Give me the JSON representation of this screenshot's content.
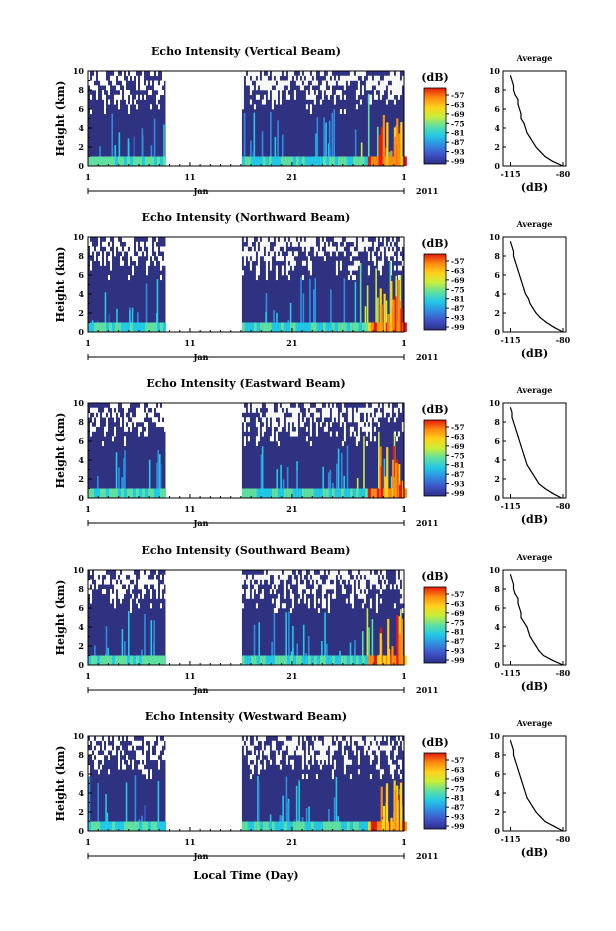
{
  "figure": {
    "xlabel": "Local Time (Day)"
  },
  "colorbar": {
    "unit": "(dB)",
    "ticks": [
      "-57",
      "-63",
      "-69",
      "-75",
      "-81",
      "-87",
      "-93",
      "-99"
    ],
    "colormap": [
      "#2b2f86",
      "#3f52c8",
      "#2f8de0",
      "#22c9e6",
      "#5fe0a0",
      "#c9ee3a",
      "#ffd21a",
      "#ff8a10",
      "#e21a0c"
    ]
  },
  "colors": {
    "no_data": "#ffffff",
    "background_echo": "#2e3280"
  },
  "chart_data": [
    {
      "type": "heatmap",
      "title": "Echo Intensity (Vertical Beam)",
      "ylabel": "Height (km)",
      "ylim": [
        0,
        10
      ],
      "yticks": [
        "0",
        "2",
        "4",
        "6",
        "8",
        "10"
      ],
      "xticks": [
        "1",
        "11",
        "21",
        "1"
      ],
      "xlim": [
        1,
        32
      ],
      "month_label": "Jan",
      "year_label": "2011",
      "data_gap_days": [
        8.6,
        16.1
      ],
      "color_range_db": [
        -99,
        -57
      ],
      "profile": {
        "title": "Average",
        "xlabel": "(dB)",
        "xticks": [
          "-115",
          "-80"
        ],
        "xlim": [
          -120,
          -78
        ],
        "yticks": [
          "0",
          "2",
          "4",
          "6",
          "8",
          "10"
        ],
        "ylim": [
          0,
          10
        ],
        "height_km": [
          0,
          0.5,
          1,
          1.5,
          2,
          2.5,
          3,
          3.5,
          4,
          4.5,
          5,
          5.5,
          6,
          6.5,
          7,
          7.5,
          8,
          8.5,
          9,
          9.5
        ],
        "value_db": [
          -80,
          -87,
          -92,
          -95,
          -98,
          -100,
          -102,
          -104,
          -105,
          -106,
          -108,
          -108,
          -109,
          -110,
          -110,
          -112,
          -113,
          -113,
          -114,
          -115
        ]
      }
    },
    {
      "type": "heatmap",
      "title": "Echo Intensity (Northward Beam)",
      "ylabel": "Height (km)",
      "ylim": [
        0,
        10
      ],
      "yticks": [
        "0",
        "2",
        "4",
        "6",
        "8",
        "10"
      ],
      "xticks": [
        "1",
        "11",
        "21",
        "1"
      ],
      "xlim": [
        1,
        32
      ],
      "month_label": "Jan",
      "year_label": "2011",
      "data_gap_days": [
        8.6,
        16.1
      ],
      "color_range_db": [
        -99,
        -57
      ],
      "profile": {
        "title": "Average",
        "xlabel": "(dB)",
        "xticks": [
          "-115",
          "-80"
        ],
        "xlim": [
          -120,
          -78
        ],
        "yticks": [
          "0",
          "2",
          "4",
          "6",
          "8",
          "10"
        ],
        "ylim": [
          0,
          10
        ],
        "height_km": [
          0,
          0.5,
          1,
          1.5,
          2,
          2.5,
          3,
          3.5,
          4,
          4.5,
          5,
          5.5,
          6,
          6.5,
          7,
          7.5,
          8,
          8.5,
          9,
          9.5
        ],
        "value_db": [
          -80,
          -86,
          -91,
          -95,
          -98,
          -100,
          -102,
          -103,
          -105,
          -106,
          -107,
          -108,
          -109,
          -110,
          -111,
          -112,
          -113,
          -113,
          -114,
          -115
        ]
      }
    },
    {
      "type": "heatmap",
      "title": "Echo Intensity (Eastward Beam)",
      "ylabel": "Height (km)",
      "ylim": [
        0,
        10
      ],
      "yticks": [
        "0",
        "2",
        "4",
        "6",
        "8",
        "10"
      ],
      "xticks": [
        "1",
        "11",
        "21",
        "1"
      ],
      "xlim": [
        1,
        32
      ],
      "month_label": "Jan",
      "year_label": "2011",
      "data_gap_days": [
        8.6,
        16.1
      ],
      "color_range_db": [
        -99,
        -57
      ],
      "profile": {
        "title": "Average",
        "xlabel": "(dB)",
        "xticks": [
          "-115",
          "-80"
        ],
        "xlim": [
          -120,
          -78
        ],
        "yticks": [
          "0",
          "2",
          "4",
          "6",
          "8",
          "10"
        ],
        "ylim": [
          0,
          10
        ],
        "height_km": [
          0,
          0.5,
          1,
          1.5,
          2,
          2.5,
          3,
          3.5,
          4,
          4.5,
          5,
          5.5,
          6,
          6.5,
          7,
          7.5,
          8,
          8.5,
          9,
          9.5
        ],
        "value_db": [
          -81,
          -87,
          -92,
          -96,
          -98,
          -100,
          -102,
          -104,
          -105,
          -106,
          -107,
          -108,
          -109,
          -110,
          -111,
          -112,
          -113,
          -114,
          -114,
          -115
        ]
      }
    },
    {
      "type": "heatmap",
      "title": "Echo Intensity (Southward Beam)",
      "ylabel": "Height (km)",
      "ylim": [
        0,
        10
      ],
      "yticks": [
        "0",
        "2",
        "4",
        "6",
        "8",
        "10"
      ],
      "xticks": [
        "1",
        "11",
        "21",
        "1"
      ],
      "xlim": [
        1,
        32
      ],
      "month_label": "Jan",
      "year_label": "2011",
      "data_gap_days": [
        8.6,
        16.1
      ],
      "color_range_db": [
        -99,
        -57
      ],
      "profile": {
        "title": "Average",
        "xlabel": "(dB)",
        "xticks": [
          "-115",
          "-80"
        ],
        "xlim": [
          -120,
          -78
        ],
        "yticks": [
          "0",
          "2",
          "4",
          "6",
          "8",
          "10"
        ],
        "ylim": [
          0,
          10
        ],
        "height_km": [
          0,
          0.5,
          1,
          1.5,
          2,
          2.5,
          3,
          3.5,
          4,
          4.5,
          5,
          5.5,
          6,
          6.5,
          7,
          7.5,
          8,
          8.5,
          9,
          9.5
        ],
        "value_db": [
          -80,
          -87,
          -93,
          -96,
          -98,
          -100,
          -102,
          -103,
          -104,
          -106,
          -108,
          -108,
          -109,
          -110,
          -110,
          -112,
          -113,
          -113,
          -114,
          -115
        ]
      }
    },
    {
      "type": "heatmap",
      "title": "Echo Intensity (Westward Beam)",
      "ylabel": "Height (km)",
      "ylim": [
        0,
        10
      ],
      "yticks": [
        "0",
        "2",
        "4",
        "6",
        "8",
        "10"
      ],
      "xticks": [
        "1",
        "11",
        "21",
        "1"
      ],
      "xlim": [
        1,
        32
      ],
      "month_label": "Jan",
      "year_label": "2011",
      "data_gap_days": [
        8.6,
        16.1
      ],
      "color_range_db": [
        -99,
        -57
      ],
      "profile": {
        "title": "Average",
        "xlabel": "(dB)",
        "xticks": [
          "-115",
          "-80"
        ],
        "xlim": [
          -120,
          -78
        ],
        "yticks": [
          "0",
          "2",
          "4",
          "6",
          "8",
          "10"
        ],
        "ylim": [
          0,
          10
        ],
        "height_km": [
          0,
          0.5,
          1,
          1.5,
          2,
          2.5,
          3,
          3.5,
          4,
          4.5,
          5,
          5.5,
          6,
          6.5,
          7,
          7.5,
          8,
          8.5,
          9,
          9.5
        ],
        "value_db": [
          -80,
          -86,
          -92,
          -95,
          -98,
          -100,
          -102,
          -104,
          -105,
          -106,
          -107,
          -108,
          -109,
          -110,
          -111,
          -112,
          -113,
          -113,
          -114,
          -115
        ]
      }
    }
  ]
}
